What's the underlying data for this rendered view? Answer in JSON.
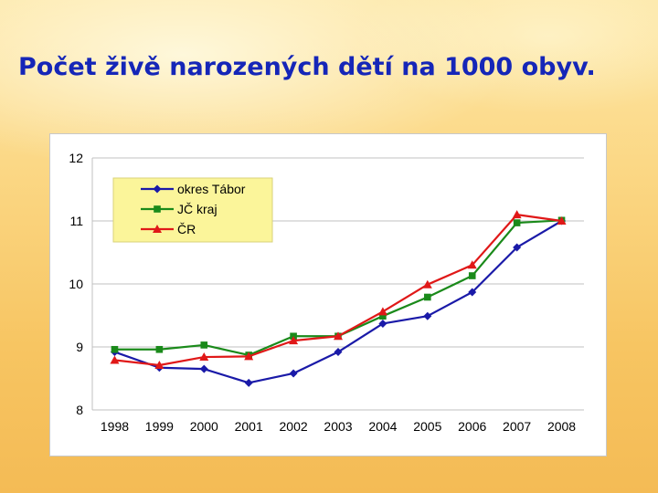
{
  "slide": {
    "title": "Počet živě narozených dětí na 1000 obyv."
  },
  "chart_data": {
    "type": "line",
    "x": [
      "1998",
      "1999",
      "2000",
      "2001",
      "2002",
      "2003",
      "2004",
      "2005",
      "2006",
      "2007",
      "2008"
    ],
    "ylim": [
      8,
      12
    ],
    "yticks": [
      8,
      9,
      10,
      11,
      12
    ],
    "grid": true,
    "legend_position": "top-left",
    "series": [
      {
        "name": "okres Tábor",
        "color": "#1a1aa8",
        "marker": "diamond",
        "values": [
          8.92,
          8.67,
          8.65,
          8.43,
          8.58,
          8.92,
          9.37,
          9.49,
          9.87,
          10.58,
          11.0
        ]
      },
      {
        "name": "JČ kraj",
        "color": "#1a8a1a",
        "marker": "square",
        "values": [
          8.96,
          8.96,
          9.03,
          8.87,
          9.17,
          9.17,
          9.49,
          9.79,
          10.13,
          10.97,
          11.01
        ]
      },
      {
        "name": "ČR",
        "color": "#e01818",
        "marker": "triangle",
        "values": [
          8.79,
          8.71,
          8.84,
          8.85,
          9.1,
          9.17,
          9.56,
          9.99,
          10.3,
          11.1,
          11.0
        ]
      }
    ]
  }
}
